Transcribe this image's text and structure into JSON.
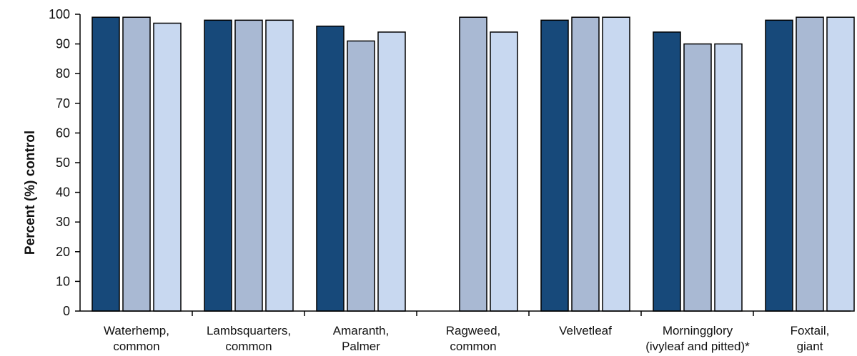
{
  "chart_data": {
    "type": "bar",
    "title": "",
    "xlabel": "",
    "ylabel": "Percent (%) control",
    "ylim": [
      0,
      100
    ],
    "yticks": [
      0,
      10,
      20,
      30,
      40,
      50,
      60,
      70,
      80,
      90,
      100
    ],
    "categories": [
      [
        "Waterhemp,",
        "common"
      ],
      [
        "Lambsquarters,",
        "common"
      ],
      [
        "Amaranth,",
        "Palmer"
      ],
      [
        "Ragweed,",
        "common"
      ],
      [
        "Velvetleaf"
      ],
      [
        "Morningglory",
        "(ivyleaf and pitted)*"
      ],
      [
        "Foxtail,",
        "giant"
      ]
    ],
    "series": [
      {
        "color": "#17497a",
        "values": [
          99,
          98,
          96,
          null,
          98,
          94,
          98
        ]
      },
      {
        "color": "#a9b9d3",
        "values": [
          99,
          98,
          91,
          99,
          99,
          90,
          99
        ]
      },
      {
        "color": "#c8d8f0",
        "values": [
          97,
          98,
          94,
          94,
          99,
          90,
          99
        ]
      }
    ],
    "grid": false,
    "legend": "none"
  }
}
